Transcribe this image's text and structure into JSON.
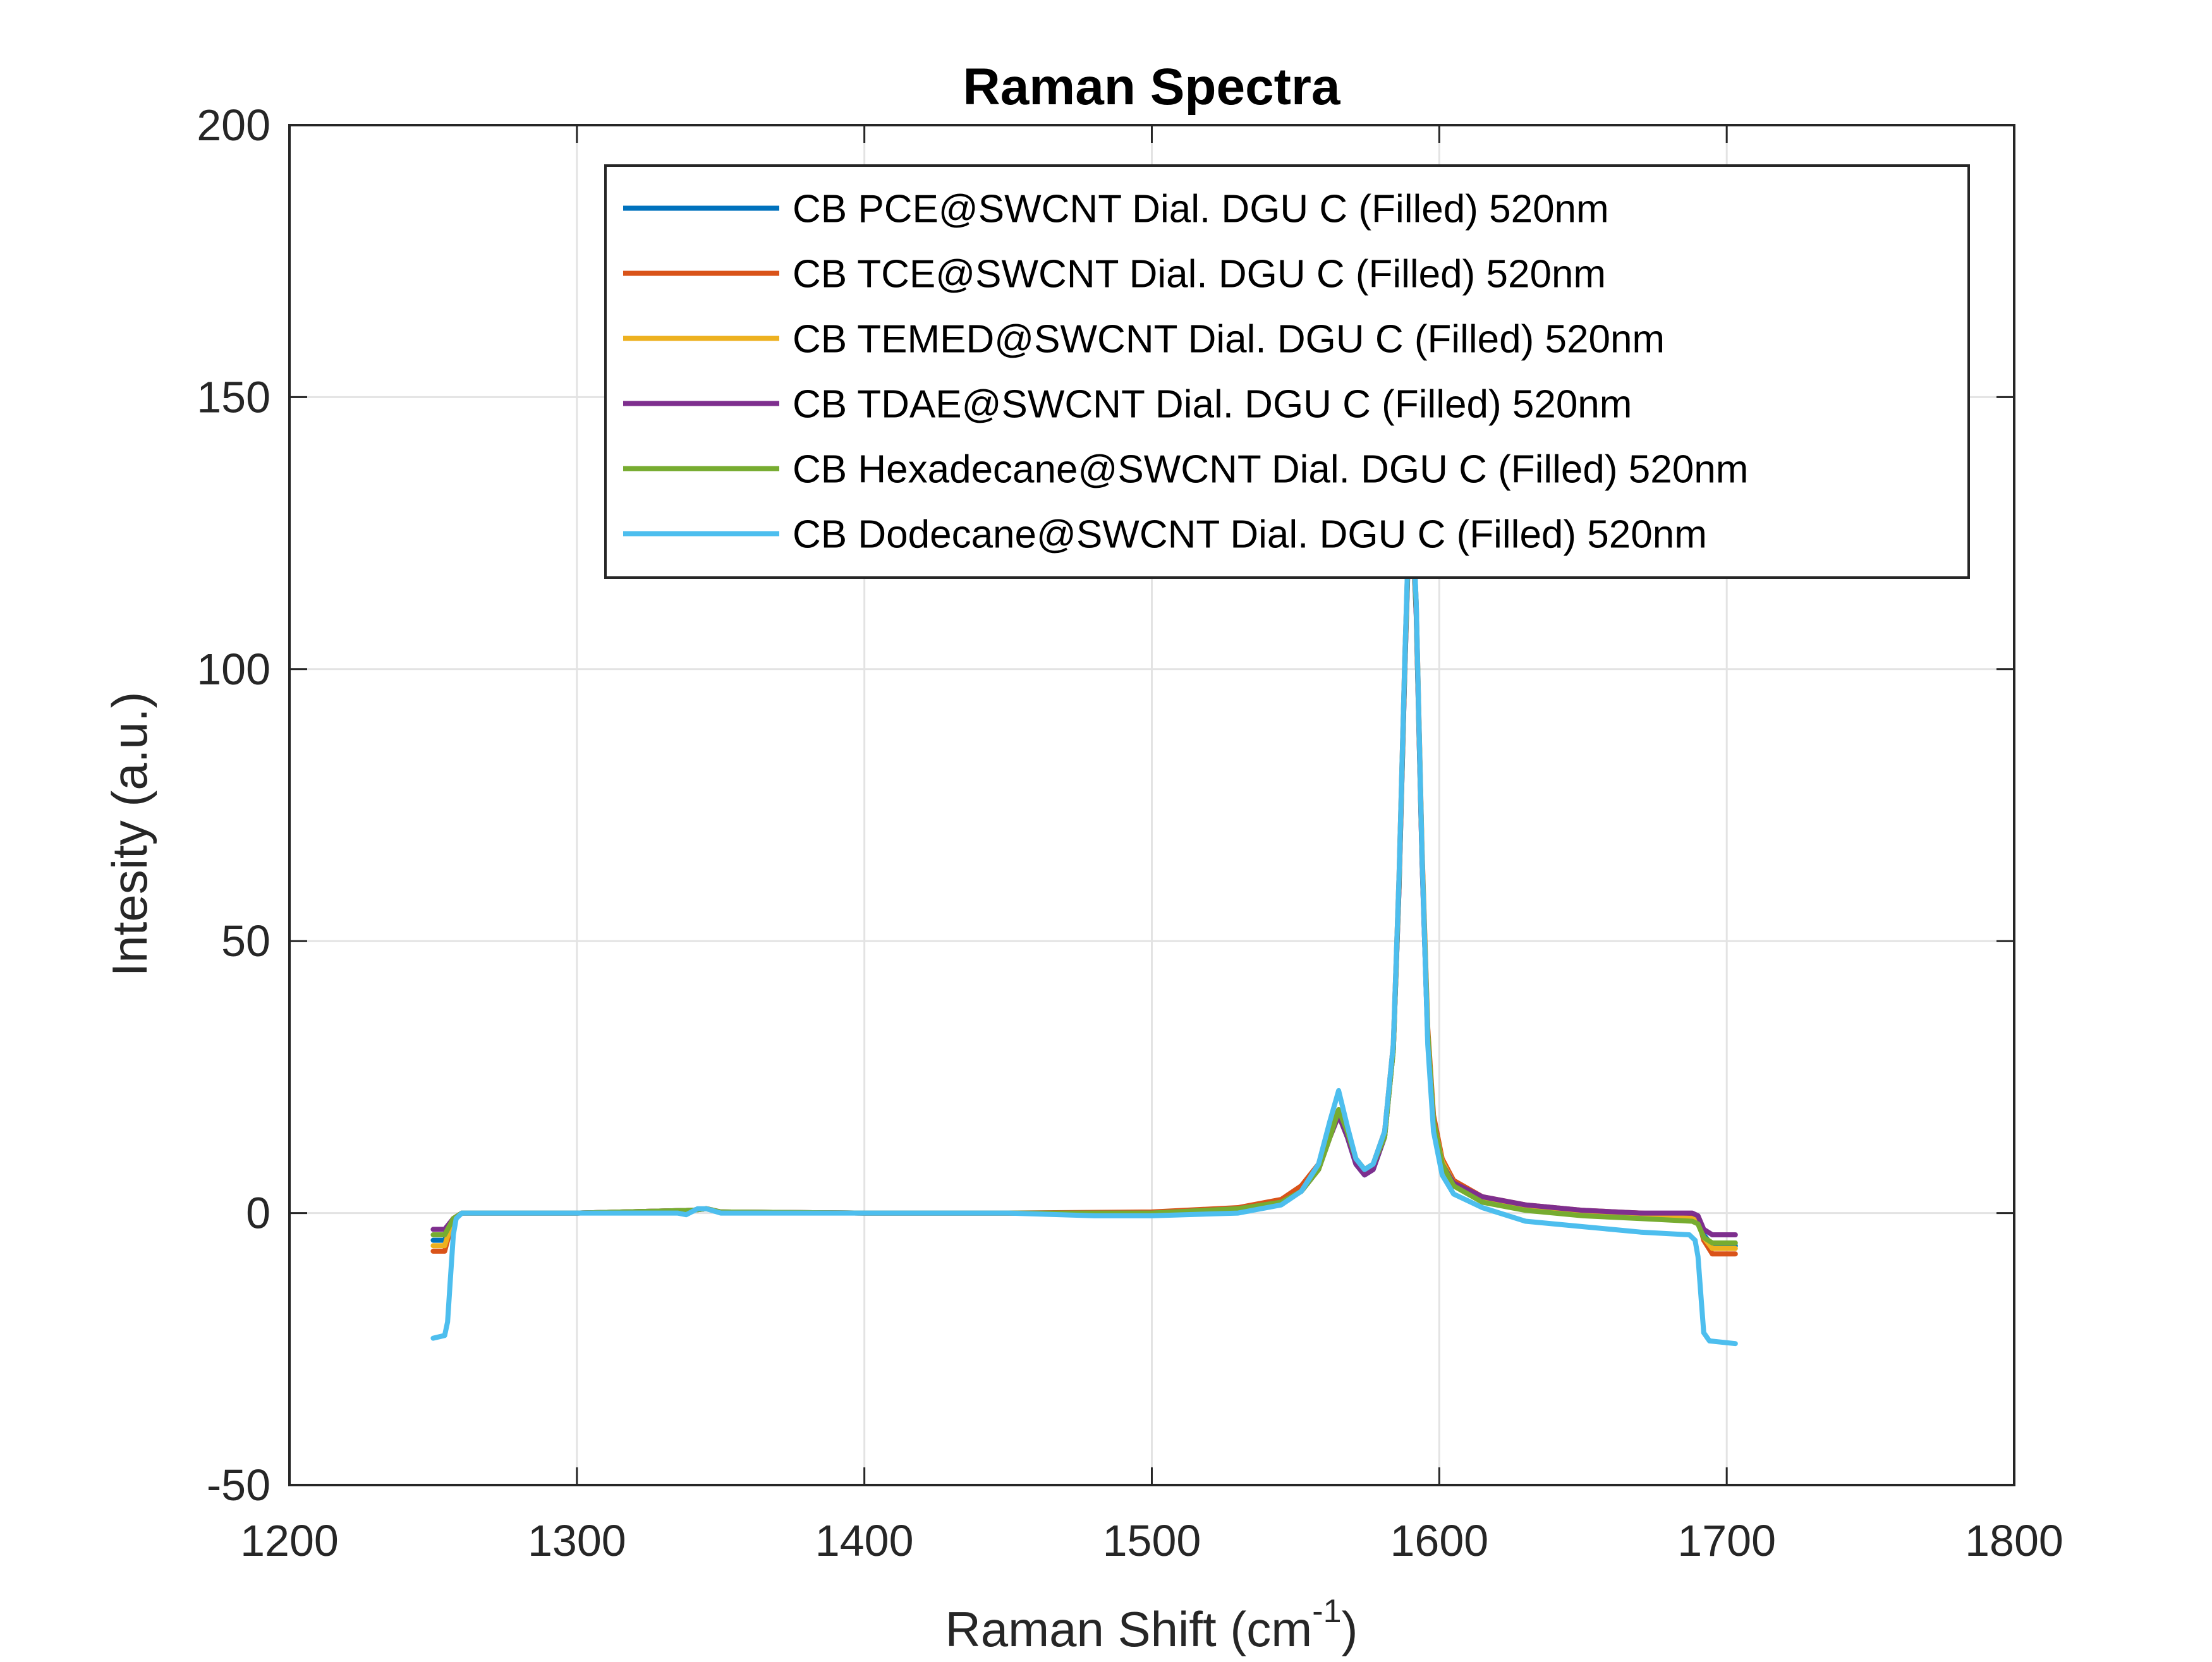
{
  "chart_data": {
    "type": "line",
    "title": "Raman Spectra",
    "xlabel_main": "Raman Shift (cm",
    "xlabel_sup": "-1",
    "xlabel_tail": ")",
    "ylabel": "Intesity (a.u.)",
    "xlim": [
      1200,
      1800
    ],
    "ylim": [
      -50,
      200
    ],
    "xticks": [
      1200,
      1300,
      1400,
      1500,
      1600,
      1700,
      1800
    ],
    "yticks": [
      -50,
      0,
      50,
      100,
      150,
      200
    ],
    "xtick_labels": [
      "1200",
      "1300",
      "1400",
      "1500",
      "1600",
      "1700",
      "1800"
    ],
    "ytick_labels": [
      "-50",
      "0",
      "50",
      "100",
      "150",
      "200"
    ],
    "grid": true,
    "legend_position": "top-right",
    "series": [
      {
        "name": "CB PCE@SWCNT Dial. DGU C (Filled) 520nm",
        "color": "#0072BD",
        "points": [
          [
            1250,
            -5
          ],
          [
            1254,
            -5
          ],
          [
            1257,
            -1
          ],
          [
            1260,
            0
          ],
          [
            1300,
            0
          ],
          [
            1340,
            0.5
          ],
          [
            1345,
            0.8
          ],
          [
            1350,
            0.2
          ],
          [
            1400,
            0
          ],
          [
            1450,
            0
          ],
          [
            1500,
            0
          ],
          [
            1530,
            0.8
          ],
          [
            1545,
            2
          ],
          [
            1552,
            4
          ],
          [
            1558,
            8
          ],
          [
            1562,
            14
          ],
          [
            1565,
            18
          ],
          [
            1568,
            14
          ],
          [
            1571,
            9
          ],
          [
            1574,
            7
          ],
          [
            1577,
            8
          ],
          [
            1581,
            14
          ],
          [
            1584,
            30
          ],
          [
            1586,
            60
          ],
          [
            1588,
            100
          ],
          [
            1590,
            135
          ],
          [
            1592,
            110
          ],
          [
            1594,
            65
          ],
          [
            1596,
            32
          ],
          [
            1598,
            17
          ],
          [
            1601,
            9
          ],
          [
            1605,
            5
          ],
          [
            1615,
            2.5
          ],
          [
            1630,
            1
          ],
          [
            1650,
            0
          ],
          [
            1670,
            -0.5
          ],
          [
            1688,
            -1
          ],
          [
            1690,
            -1.5
          ],
          [
            1692,
            -4
          ],
          [
            1695,
            -6
          ],
          [
            1703,
            -6
          ]
        ]
      },
      {
        "name": "CB TCE@SWCNT Dial. DGU C (Filled) 520nm",
        "color": "#D95319",
        "points": [
          [
            1250,
            -7
          ],
          [
            1254,
            -7
          ],
          [
            1257,
            -1
          ],
          [
            1260,
            0
          ],
          [
            1300,
            0
          ],
          [
            1340,
            0.5
          ],
          [
            1345,
            0.8
          ],
          [
            1350,
            0.2
          ],
          [
            1400,
            0
          ],
          [
            1450,
            0
          ],
          [
            1500,
            0.2
          ],
          [
            1530,
            1
          ],
          [
            1545,
            2.5
          ],
          [
            1552,
            5
          ],
          [
            1558,
            9
          ],
          [
            1562,
            15
          ],
          [
            1565,
            19
          ],
          [
            1568,
            15
          ],
          [
            1571,
            10
          ],
          [
            1574,
            8
          ],
          [
            1577,
            9
          ],
          [
            1581,
            15
          ],
          [
            1584,
            31
          ],
          [
            1586,
            62
          ],
          [
            1588,
            102
          ],
          [
            1590,
            136
          ],
          [
            1592,
            112
          ],
          [
            1594,
            67
          ],
          [
            1596,
            34
          ],
          [
            1598,
            18
          ],
          [
            1601,
            10
          ],
          [
            1605,
            6
          ],
          [
            1615,
            3
          ],
          [
            1630,
            1.5
          ],
          [
            1650,
            0.5
          ],
          [
            1670,
            0
          ],
          [
            1688,
            -0.5
          ],
          [
            1690,
            -1
          ],
          [
            1692,
            -5
          ],
          [
            1695,
            -7.5
          ],
          [
            1703,
            -7.5
          ]
        ]
      },
      {
        "name": "CB TEMED@SWCNT Dial. DGU C (Filled) 520nm",
        "color": "#EDB120",
        "points": [
          [
            1250,
            -6
          ],
          [
            1254,
            -6
          ],
          [
            1257,
            -1
          ],
          [
            1260,
            0
          ],
          [
            1300,
            0
          ],
          [
            1340,
            0.5
          ],
          [
            1345,
            0.8
          ],
          [
            1350,
            0.2
          ],
          [
            1400,
            0
          ],
          [
            1450,
            0
          ],
          [
            1500,
            0
          ],
          [
            1530,
            0.8
          ],
          [
            1545,
            2
          ],
          [
            1552,
            4
          ],
          [
            1558,
            8
          ],
          [
            1562,
            14
          ],
          [
            1565,
            18
          ],
          [
            1568,
            14
          ],
          [
            1571,
            9.5
          ],
          [
            1574,
            7.5
          ],
          [
            1577,
            8.5
          ],
          [
            1581,
            14
          ],
          [
            1584,
            30
          ],
          [
            1586,
            61
          ],
          [
            1588,
            101
          ],
          [
            1590,
            135
          ],
          [
            1592,
            111
          ],
          [
            1594,
            66
          ],
          [
            1596,
            33
          ],
          [
            1598,
            17
          ],
          [
            1601,
            9.5
          ],
          [
            1605,
            5.5
          ],
          [
            1615,
            2.5
          ],
          [
            1630,
            1
          ],
          [
            1650,
            0
          ],
          [
            1670,
            -0.5
          ],
          [
            1688,
            -1
          ],
          [
            1690,
            -1.5
          ],
          [
            1692,
            -4.5
          ],
          [
            1695,
            -6.5
          ],
          [
            1703,
            -6.5
          ]
        ]
      },
      {
        "name": "CB TDAE@SWCNT Dial. DGU C (Filled) 520nm",
        "color": "#7E2F8E",
        "points": [
          [
            1250,
            -3
          ],
          [
            1254,
            -3
          ],
          [
            1257,
            -1
          ],
          [
            1260,
            0
          ],
          [
            1300,
            0
          ],
          [
            1340,
            0.5
          ],
          [
            1345,
            0.8
          ],
          [
            1350,
            0.2
          ],
          [
            1400,
            0
          ],
          [
            1450,
            0
          ],
          [
            1500,
            0
          ],
          [
            1530,
            0.8
          ],
          [
            1545,
            2
          ],
          [
            1552,
            4
          ],
          [
            1558,
            8
          ],
          [
            1562,
            14
          ],
          [
            1565,
            18
          ],
          [
            1568,
            14
          ],
          [
            1571,
            9
          ],
          [
            1574,
            7
          ],
          [
            1577,
            8
          ],
          [
            1581,
            14
          ],
          [
            1584,
            30
          ],
          [
            1586,
            60
          ],
          [
            1588,
            100
          ],
          [
            1590,
            134
          ],
          [
            1592,
            110
          ],
          [
            1594,
            65
          ],
          [
            1596,
            32
          ],
          [
            1598,
            17
          ],
          [
            1601,
            9
          ],
          [
            1605,
            5.5
          ],
          [
            1615,
            3
          ],
          [
            1630,
            1.5
          ],
          [
            1650,
            0.5
          ],
          [
            1670,
            0
          ],
          [
            1688,
            0
          ],
          [
            1690,
            -0.5
          ],
          [
            1692,
            -3
          ],
          [
            1695,
            -4
          ],
          [
            1703,
            -4
          ]
        ]
      },
      {
        "name": "CB Hexadecane@SWCNT Dial. DGU C (Filled) 520nm",
        "color": "#77AC30",
        "points": [
          [
            1250,
            -4
          ],
          [
            1254,
            -4
          ],
          [
            1257,
            -1
          ],
          [
            1260,
            0
          ],
          [
            1300,
            0
          ],
          [
            1340,
            0.5
          ],
          [
            1345,
            0.8
          ],
          [
            1350,
            0.2
          ],
          [
            1400,
            0
          ],
          [
            1450,
            0
          ],
          [
            1500,
            0
          ],
          [
            1530,
            0.8
          ],
          [
            1545,
            2
          ],
          [
            1552,
            4
          ],
          [
            1558,
            8
          ],
          [
            1562,
            14
          ],
          [
            1565,
            19
          ],
          [
            1568,
            15
          ],
          [
            1571,
            10
          ],
          [
            1574,
            8
          ],
          [
            1577,
            9
          ],
          [
            1581,
            14
          ],
          [
            1584,
            30
          ],
          [
            1586,
            61
          ],
          [
            1588,
            101
          ],
          [
            1590,
            135
          ],
          [
            1592,
            111
          ],
          [
            1594,
            66
          ],
          [
            1596,
            33
          ],
          [
            1598,
            17
          ],
          [
            1601,
            9
          ],
          [
            1605,
            5
          ],
          [
            1615,
            2
          ],
          [
            1630,
            0.5
          ],
          [
            1650,
            -0.5
          ],
          [
            1670,
            -1
          ],
          [
            1688,
            -1.5
          ],
          [
            1690,
            -2
          ],
          [
            1692,
            -4.5
          ],
          [
            1695,
            -5.5
          ],
          [
            1703,
            -5.5
          ]
        ]
      },
      {
        "name": "CB Dodecane@SWCNT Dial. DGU C (Filled) 520nm",
        "color": "#4DBEEE",
        "points": [
          [
            1250,
            -23
          ],
          [
            1254,
            -22.5
          ],
          [
            1255,
            -20
          ],
          [
            1256,
            -12
          ],
          [
            1257,
            -4
          ],
          [
            1258,
            -1
          ],
          [
            1260,
            0
          ],
          [
            1270,
            0
          ],
          [
            1300,
            0
          ],
          [
            1335,
            0
          ],
          [
            1338,
            -0.3
          ],
          [
            1342,
            0.8
          ],
          [
            1345,
            0.8
          ],
          [
            1350,
            0
          ],
          [
            1400,
            0
          ],
          [
            1450,
            0
          ],
          [
            1480,
            -0.5
          ],
          [
            1500,
            -0.5
          ],
          [
            1530,
            0
          ],
          [
            1545,
            1.5
          ],
          [
            1552,
            4
          ],
          [
            1558,
            9
          ],
          [
            1562,
            17
          ],
          [
            1565,
            22.5
          ],
          [
            1568,
            16
          ],
          [
            1571,
            10
          ],
          [
            1574,
            8
          ],
          [
            1577,
            9
          ],
          [
            1581,
            15
          ],
          [
            1584,
            31
          ],
          [
            1586,
            62
          ],
          [
            1588,
            102
          ],
          [
            1590,
            137
          ],
          [
            1592,
            112
          ],
          [
            1594,
            66
          ],
          [
            1596,
            31
          ],
          [
            1598,
            15
          ],
          [
            1601,
            7
          ],
          [
            1605,
            3.5
          ],
          [
            1615,
            1
          ],
          [
            1630,
            -1.5
          ],
          [
            1650,
            -2.5
          ],
          [
            1670,
            -3.5
          ],
          [
            1687,
            -4
          ],
          [
            1689,
            -5
          ],
          [
            1690,
            -8
          ],
          [
            1691,
            -15
          ],
          [
            1692,
            -22
          ],
          [
            1694,
            -23.5
          ],
          [
            1703,
            -24
          ]
        ]
      }
    ]
  }
}
